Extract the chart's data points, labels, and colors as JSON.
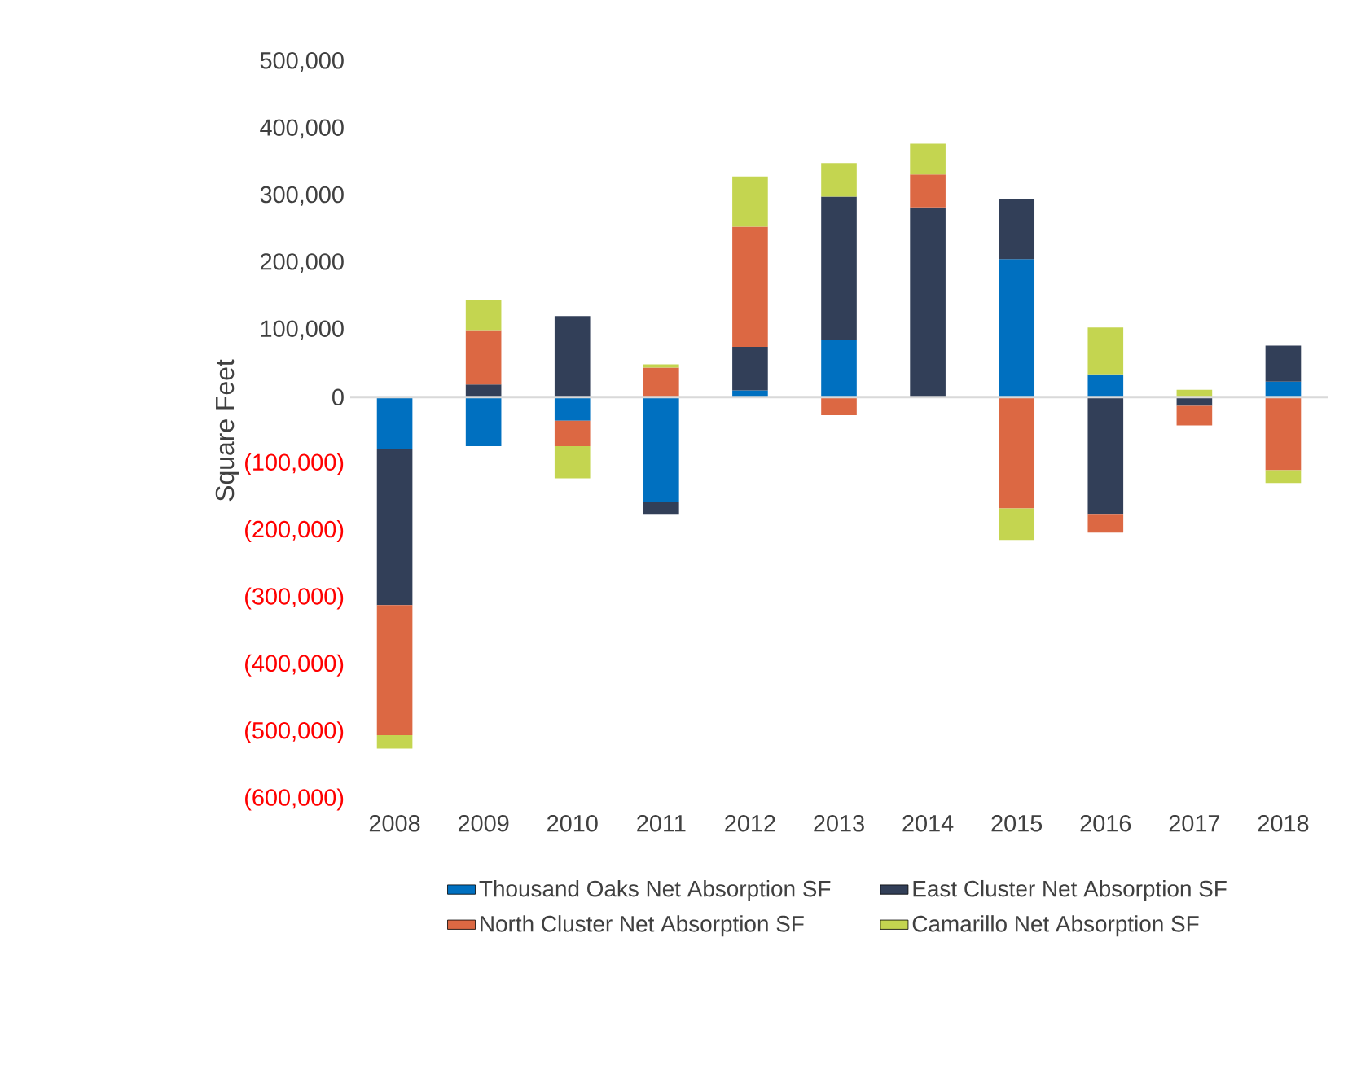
{
  "chart_data": {
    "type": "bar",
    "stacked": true,
    "ylabel": "Square Feet",
    "categories": [
      "2008",
      "2009",
      "2010",
      "2011",
      "2012",
      "2013",
      "2014",
      "2015",
      "2016",
      "2017",
      "2018"
    ],
    "series": [
      {
        "name": "Thousand Oaks Net Absorption SF",
        "color": "#0070c0",
        "values": [
          -77000,
          -73000,
          -35000,
          -156000,
          10000,
          85000,
          0,
          206000,
          34000,
          0,
          23000
        ]
      },
      {
        "name": "East Cluster Net Absorption SF",
        "color": "#323f58",
        "values": [
          -233000,
          19000,
          121000,
          -18000,
          65000,
          214000,
          283000,
          89000,
          -174000,
          -13000,
          54000
        ]
      },
      {
        "name": "North Cluster Net Absorption SF",
        "color": "#dc6843",
        "values": [
          -194000,
          81000,
          -38000,
          44000,
          179000,
          -27000,
          49000,
          -166000,
          -28000,
          -29000,
          -109000
        ]
      },
      {
        "name": "Camarillo Net Absorption SF",
        "color": "#c4d550",
        "values": [
          -20000,
          45000,
          -48000,
          5000,
          75000,
          50000,
          46000,
          -47000,
          70000,
          11000,
          -19000
        ]
      }
    ],
    "ylim": [
      -600000,
      500000
    ],
    "yticks": [
      {
        "value": 500000,
        "label": "500,000"
      },
      {
        "value": 400000,
        "label": "400,000"
      },
      {
        "value": 300000,
        "label": "300,000"
      },
      {
        "value": 200000,
        "label": "200,000"
      },
      {
        "value": 100000,
        "label": "100,000"
      },
      0,
      {
        "value": -100000,
        "label": "(100,000)"
      },
      {
        "value": -200000,
        "label": "(200,000)"
      },
      {
        "value": -300000,
        "label": "(300,000)"
      },
      {
        "value": -400000,
        "label": "(400,000)"
      },
      {
        "value": -500000,
        "label": "(500,000)"
      },
      {
        "value": -600000,
        "label": "(600,000)"
      }
    ],
    "ref_lines": [
      {
        "axis": "y",
        "value": 0,
        "color": "#d9d9d9"
      }
    ],
    "grid": false,
    "legend": "bottom"
  }
}
